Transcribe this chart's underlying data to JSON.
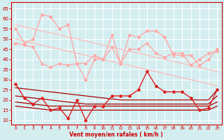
{
  "x": [
    0,
    1,
    2,
    3,
    4,
    5,
    6,
    7,
    8,
    9,
    10,
    11,
    12,
    13,
    14,
    15,
    16,
    17,
    18,
    19,
    20,
    21,
    22,
    23
  ],
  "series": [
    {
      "name": "diag_top1",
      "color": "#ffbbbb",
      "linewidth": 0.9,
      "marker": null,
      "markersize": 0,
      "values": [
        57,
        56,
        55,
        54,
        53,
        52,
        51,
        50,
        49,
        48,
        47,
        46,
        45,
        44,
        43,
        42,
        41,
        40,
        39,
        38,
        37,
        36,
        35,
        34
      ]
    },
    {
      "name": "diag_top2",
      "color": "#ffbbbb",
      "linewidth": 0.9,
      "marker": null,
      "markersize": 0,
      "values": [
        50,
        49,
        48,
        47,
        46,
        45,
        44,
        43,
        42,
        41,
        40,
        39,
        38,
        37,
        36,
        35,
        34,
        33,
        32,
        31,
        30,
        29,
        28,
        27
      ]
    },
    {
      "name": "rafales_max_light",
      "color": "#ffaaaa",
      "linewidth": 1.0,
      "marker": "D",
      "markersize": 2.0,
      "values": [
        55,
        48,
        50,
        62,
        61,
        55,
        57,
        38,
        38,
        42,
        40,
        52,
        38,
        52,
        51,
        54,
        54,
        51,
        42,
        42,
        42,
        37,
        40,
        45
      ]
    },
    {
      "name": "vent_max_light",
      "color": "#ffaaaa",
      "linewidth": 1.0,
      "marker": "D",
      "markersize": 2.0,
      "values": [
        48,
        47,
        46,
        38,
        36,
        38,
        37,
        38,
        30,
        40,
        40,
        46,
        38,
        45,
        45,
        48,
        43,
        41,
        43,
        43,
        37,
        40,
        43,
        44
      ]
    },
    {
      "name": "vent_rafales_dark",
      "color": "#dd2222",
      "linewidth": 1.0,
      "marker": "D",
      "markersize": 2.0,
      "values": [
        28,
        21,
        18,
        21,
        15,
        16,
        11,
        20,
        10,
        17,
        17,
        22,
        22,
        22,
        25,
        34,
        27,
        24,
        24,
        24,
        21,
        15,
        16,
        25
      ]
    },
    {
      "name": "diag_line1",
      "color": "#aa0000",
      "linewidth": 0.9,
      "marker": null,
      "markersize": 0,
      "values": [
        26,
        25.5,
        25,
        24.5,
        24,
        23.5,
        23,
        22.5,
        22,
        21.5,
        21,
        20.5,
        20,
        20,
        20,
        20,
        20,
        20,
        20,
        20,
        20,
        20,
        20,
        25
      ]
    },
    {
      "name": "diag_line2",
      "color": "#aa0000",
      "linewidth": 0.9,
      "marker": null,
      "markersize": 0,
      "values": [
        22,
        21.5,
        21,
        20.5,
        20,
        19.5,
        19,
        18.5,
        18,
        18,
        18,
        18,
        18,
        18,
        18,
        18,
        18,
        18,
        18,
        18,
        18,
        18,
        18,
        22
      ]
    },
    {
      "name": "diag_line3",
      "color": "#aa0000",
      "linewidth": 0.9,
      "marker": null,
      "markersize": 0,
      "values": [
        19,
        18.5,
        18,
        17.5,
        17,
        17,
        17,
        17,
        17,
        17,
        17,
        17,
        17,
        17,
        17,
        17,
        17,
        17,
        17,
        17,
        17,
        17,
        17,
        19
      ]
    },
    {
      "name": "diag_line4",
      "color": "#aa0000",
      "linewidth": 0.9,
      "marker": null,
      "markersize": 0,
      "values": [
        17,
        16.5,
        16,
        15.5,
        15,
        15,
        15,
        15,
        15,
        15,
        15,
        15,
        15,
        15,
        15,
        15,
        15,
        15,
        15,
        15,
        15,
        15,
        15,
        17
      ]
    }
  ],
  "yticks": [
    10,
    15,
    20,
    25,
    30,
    35,
    40,
    45,
    50,
    55,
    60,
    65
  ],
  "xticks": [
    0,
    1,
    2,
    3,
    4,
    5,
    6,
    7,
    8,
    9,
    10,
    11,
    12,
    13,
    14,
    15,
    16,
    17,
    18,
    19,
    20,
    21,
    22,
    23
  ],
  "xlabel": "Vent moyen/en rafales ( km/h )",
  "ylim": [
    8,
    68
  ],
  "xlim": [
    -0.5,
    23.5
  ],
  "bg_color": "#d4eef0",
  "grid_color": "#ffffff",
  "axis_color": "#cc0000",
  "label_color": "#cc0000",
  "tick_color": "#cc0000",
  "figsize": [
    3.2,
    2.0
  ],
  "dpi": 100
}
